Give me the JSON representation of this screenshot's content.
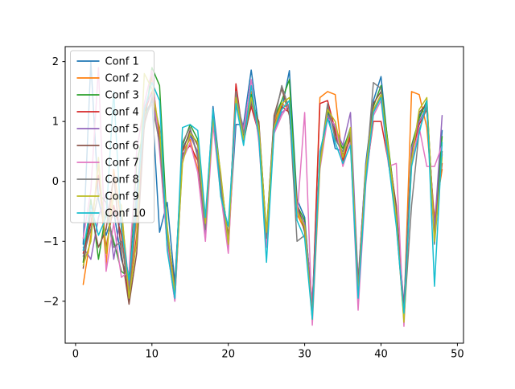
{
  "figure": {
    "background": "#ffffff",
    "axis_color": "#000000",
    "legend_border_color": "#cccccc",
    "legend_background": "rgba(255,255,255,0.8)"
  },
  "chart_data": {
    "type": "line",
    "title": "",
    "xlabel": "",
    "ylabel": "",
    "grid": false,
    "legend_position": "upper left",
    "xlim": [
      -1.36,
      50.8
    ],
    "ylim": [
      -2.7,
      2.25
    ],
    "xticks": [
      0,
      10,
      20,
      30,
      40,
      50
    ],
    "yticks": [
      -2,
      -1,
      0,
      1,
      2
    ],
    "x": [
      1,
      2,
      3,
      4,
      5,
      6,
      7,
      8,
      9,
      10,
      11,
      12,
      13,
      14,
      15,
      16,
      17,
      18,
      19,
      20,
      21,
      22,
      23,
      24,
      25,
      26,
      27,
      28,
      29,
      30,
      31,
      32,
      33,
      34,
      35,
      36,
      37,
      38,
      39,
      40,
      41,
      42,
      43,
      44,
      45,
      46,
      47,
      48
    ],
    "series": [
      {
        "name": "Conf 1",
        "color": "#1f77b4",
        "values": [
          -1.05,
          2.0,
          -0.3,
          -0.9,
          -0.5,
          -1.3,
          -1.7,
          -0.2,
          1.1,
          1.35,
          -0.85,
          -0.35,
          -1.7,
          0.55,
          0.8,
          0.45,
          -0.7,
          1.25,
          0.1,
          -1.0,
          0.95,
          0.95,
          1.86,
          0.9,
          -1.0,
          0.9,
          1.2,
          1.85,
          -0.3,
          -0.6,
          -2.1,
          0.35,
          1.15,
          0.55,
          0.5,
          0.9,
          -1.7,
          0.3,
          1.35,
          1.75,
          0.5,
          -0.45,
          -2.15,
          0.5,
          1.1,
          1.3,
          -0.85,
          0.85
        ]
      },
      {
        "name": "Conf 2",
        "color": "#ff7f0e",
        "values": [
          -1.72,
          -0.9,
          0.3,
          -1.4,
          0.2,
          -0.7,
          -1.9,
          -0.6,
          1.0,
          1.75,
          0.7,
          -1.0,
          -1.9,
          0.5,
          0.7,
          0.2,
          -0.9,
          1.0,
          -0.1,
          -1.15,
          1.3,
          0.8,
          1.5,
          0.7,
          -1.0,
          1.0,
          1.3,
          1.2,
          -0.55,
          -0.8,
          -2.2,
          1.4,
          1.5,
          1.45,
          0.3,
          0.8,
          -1.85,
          0.1,
          1.2,
          1.4,
          0.35,
          -0.6,
          -2.2,
          1.5,
          1.45,
          0.9,
          -0.6,
          0.2
        ]
      },
      {
        "name": "Conf 3",
        "color": "#2ca02c",
        "values": [
          -1.35,
          -0.3,
          -1.3,
          -0.5,
          -1.0,
          -1.5,
          -1.6,
          0.3,
          0.9,
          1.9,
          1.6,
          -0.8,
          -1.8,
          0.6,
          0.95,
          0.7,
          -0.75,
          1.15,
          0.05,
          -0.95,
          1.4,
          0.75,
          1.45,
          0.95,
          -0.85,
          1.05,
          1.35,
          1.7,
          -0.4,
          -0.65,
          -2.05,
          0.4,
          1.2,
          0.8,
          0.55,
          0.85,
          -1.75,
          0.2,
          1.25,
          1.6,
          0.55,
          -0.5,
          -2.1,
          0.6,
          1.05,
          1.35,
          -0.9,
          0.75
        ]
      },
      {
        "name": "Conf 4",
        "color": "#d62728",
        "values": [
          -1.2,
          -0.7,
          0.1,
          -1.1,
          -0.4,
          -0.9,
          -2.0,
          -0.9,
          1.15,
          1.5,
          0.75,
          -0.95,
          -1.85,
          0.45,
          0.6,
          0.35,
          -0.85,
          1.05,
          -0.05,
          -1.05,
          1.63,
          0.7,
          1.25,
          0.8,
          -1.05,
          0.95,
          1.25,
          1.15,
          -0.5,
          -0.75,
          -2.15,
          1.3,
          1.35,
          0.85,
          0.35,
          0.75,
          -1.8,
          0.05,
          1.0,
          1.0,
          0.3,
          -0.65,
          -2.25,
          0.45,
          0.95,
          1.2,
          -0.75,
          0.3
        ]
      },
      {
        "name": "Conf 5",
        "color": "#9467bd",
        "values": [
          -1.1,
          -1.3,
          -0.6,
          -0.2,
          -1.3,
          -0.5,
          -1.75,
          -0.3,
          1.25,
          1.45,
          0.6,
          -1.1,
          -2.0,
          0.4,
          0.75,
          0.5,
          -0.95,
          1.2,
          0.0,
          -1.1,
          1.35,
          0.9,
          1.4,
          0.75,
          -0.95,
          0.85,
          1.15,
          1.25,
          -0.45,
          -0.7,
          -2.0,
          0.45,
          1.1,
          0.9,
          0.6,
          1.15,
          -1.65,
          0.25,
          1.15,
          1.45,
          0.4,
          -0.55,
          -2.05,
          0.55,
          1.0,
          1.25,
          -0.8,
          1.1
        ]
      },
      {
        "name": "Conf 6",
        "color": "#8c564b",
        "values": [
          -1.45,
          -0.5,
          -1.1,
          -0.8,
          0.1,
          -1.2,
          -2.05,
          -1.2,
          0.95,
          1.4,
          0.9,
          -0.85,
          -1.75,
          0.5,
          0.85,
          0.6,
          -0.65,
          1.1,
          -0.15,
          -0.9,
          1.45,
          0.65,
          1.3,
          1.0,
          -0.9,
          1.1,
          1.55,
          1.1,
          -0.35,
          -0.85,
          -2.1,
          0.3,
          1.25,
          0.75,
          0.45,
          0.7,
          -1.7,
          0.15,
          1.3,
          1.5,
          0.45,
          -0.4,
          -2.15,
          0.4,
          1.15,
          1.3,
          -0.95,
          0.5
        ]
      },
      {
        "name": "Conf 7",
        "color": "#e377c2",
        "values": [
          -0.95,
          -0.15,
          1.9,
          -1.5,
          -0.7,
          -1.6,
          -1.5,
          0.5,
          1.3,
          1.85,
          0.5,
          -1.05,
          -2.0,
          0.35,
          0.65,
          0.15,
          -1.0,
          0.95,
          -0.2,
          -1.2,
          1.25,
          0.85,
          1.7,
          0.65,
          -1.1,
          0.8,
          1.1,
          1.3,
          -0.6,
          1.15,
          -2.4,
          0.2,
          1.05,
          0.95,
          0.25,
          0.65,
          -2.15,
          -0.05,
          1.1,
          1.35,
          0.25,
          0.3,
          -2.42,
          0.3,
          0.9,
          0.25,
          0.25,
          0.6
        ]
      },
      {
        "name": "Conf 8",
        "color": "#7f7f7f",
        "values": [
          -1.25,
          -0.8,
          -0.2,
          -0.35,
          -1.1,
          -1.0,
          -1.85,
          -0.5,
          1.05,
          1.3,
          0.65,
          -0.9,
          -1.8,
          0.65,
          0.9,
          0.4,
          -0.8,
          1.15,
          -0.1,
          -1.0,
          1.5,
          0.8,
          1.35,
          0.85,
          -0.95,
          1.0,
          1.6,
          1.2,
          -1.0,
          -0.9,
          -2.2,
          0.35,
          1.3,
          0.7,
          0.5,
          0.8,
          -1.75,
          0.1,
          1.65,
          1.55,
          0.35,
          -0.7,
          -2.3,
          -0.4,
          0.85,
          1.25,
          -1.05,
          0.45
        ]
      },
      {
        "name": "Conf 9",
        "color": "#bcbd22",
        "values": [
          -1.4,
          -1.0,
          0.4,
          -1.2,
          -0.2,
          -0.4,
          -1.95,
          -1.0,
          1.8,
          1.55,
          0.85,
          -0.75,
          -1.9,
          0.3,
          0.8,
          0.65,
          -0.7,
          1.05,
          0.15,
          -1.05,
          1.4,
          0.7,
          1.4,
          0.9,
          -0.85,
          0.9,
          1.3,
          1.4,
          -0.5,
          -0.75,
          -2.3,
          0.25,
          1.2,
          1.0,
          0.4,
          0.9,
          -1.9,
          0.2,
          1.2,
          1.45,
          0.5,
          -0.6,
          -2.35,
          0.35,
          1.2,
          1.4,
          -1.0,
          0.4
        ]
      },
      {
        "name": "Conf 10",
        "color": "#17becf",
        "values": [
          -1.15,
          -0.4,
          -0.9,
          -0.6,
          1.5,
          -0.8,
          -1.65,
          -0.4,
          1.2,
          1.65,
          1.35,
          -1.15,
          -1.95,
          0.9,
          0.95,
          0.85,
          -0.6,
          1.2,
          -0.25,
          -0.75,
          1.3,
          0.6,
          1.6,
          0.75,
          -1.35,
          0.85,
          1.2,
          1.35,
          -0.65,
          -0.95,
          -2.3,
          0.5,
          1.05,
          0.65,
          0.3,
          0.6,
          -1.95,
          0.0,
          1.15,
          1.4,
          0.3,
          -0.75,
          -2.2,
          0.25,
          0.8,
          1.35,
          -1.75,
          0.65
        ]
      }
    ]
  }
}
